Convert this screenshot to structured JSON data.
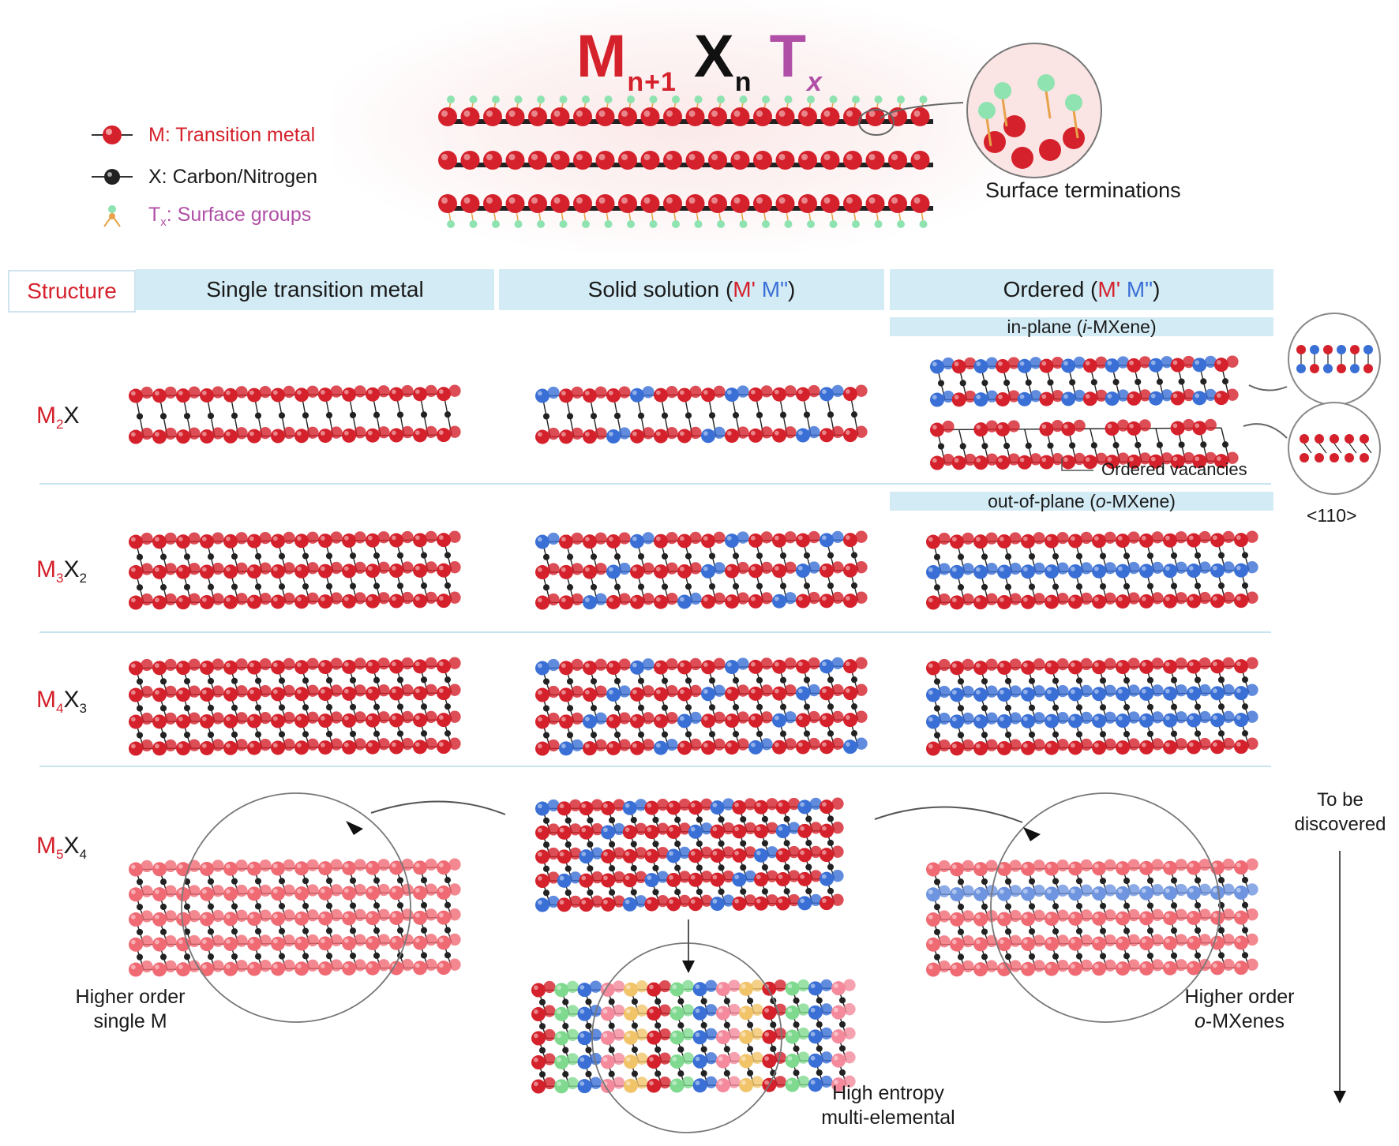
{
  "formula": {
    "M": "M",
    "M_sub": "n+1",
    "X": "X",
    "X_sub": "n",
    "T": "T",
    "T_sub": "x"
  },
  "legend": [
    {
      "label": "M: Transition metal"
    },
    {
      "label": "X: Carbon/Nitrogen"
    },
    {
      "label_pre": "T",
      "label_sub": "x",
      "label_post": ": Surface groups"
    }
  ],
  "surface_terminations": "Surface terminations",
  "headers": {
    "structure": "Structure",
    "single": "Single transition metal",
    "solid_pre": "Solid solution (",
    "solid_m1": "M'",
    "solid_m2": "M\"",
    "solid_post": ")",
    "ordered_pre": "Ordered (",
    "ordered_m1": "M'",
    "ordered_m2": "M\"",
    "ordered_post": ")",
    "in_plane_pre": "in-plane (",
    "in_plane_i": "i",
    "in_plane_post": "-MXene)",
    "out_plane_pre": "out-of-plane (",
    "out_plane_o": "o",
    "out_plane_post": "-MXene)"
  },
  "rows": [
    {
      "M": "M",
      "m_sub": "2",
      "X": "X",
      "x_sub": ""
    },
    {
      "M": "M",
      "m_sub": "3",
      "X": "X",
      "x_sub": "2"
    },
    {
      "M": "M",
      "m_sub": "4",
      "X": "X",
      "x_sub": "3"
    },
    {
      "M": "M",
      "m_sub": "5",
      "X": "X",
      "x_sub": "4"
    }
  ],
  "ordered_vacancies": "Ordered vacancies",
  "direction": "<110>",
  "to_be_discovered": {
    "line1": "To be",
    "line2": "discovered"
  },
  "higher_single": {
    "line1": "Higher order",
    "line2": "single M"
  },
  "higher_o": {
    "line1": "Higher order",
    "line2_o": "o",
    "line2_rest": "-MXenes"
  },
  "high_entropy": {
    "line1": "High entropy",
    "line2": "multi-elemental"
  },
  "colors": {
    "metal_red": "#d5212b",
    "metal_blue": "#3a6fd6",
    "header_bg": "#d3ebf5",
    "tx_purple": "#b04fa6"
  }
}
